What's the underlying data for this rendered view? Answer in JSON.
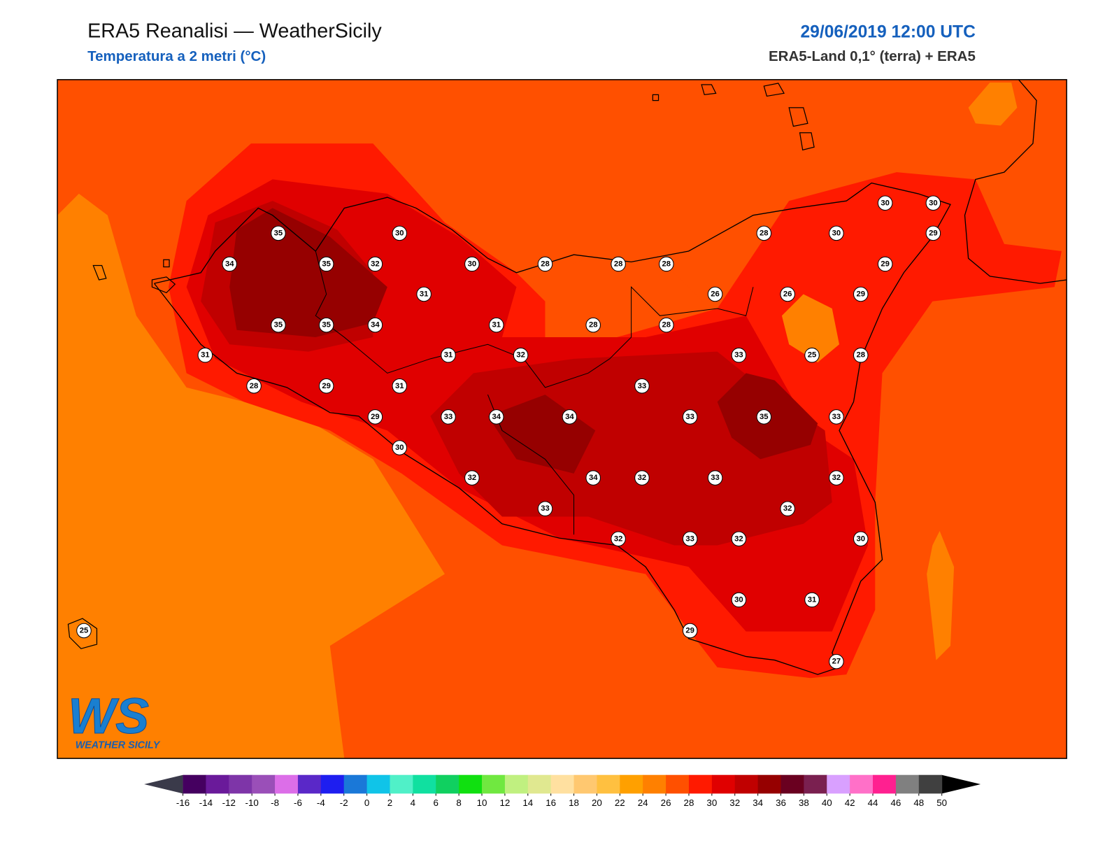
{
  "header": {
    "title": "ERA5 Reanalisi — WeatherSicily",
    "subtitle": "Temperatura a 2 metri (°C)",
    "date": "29/06/2019 12:00 UTC",
    "source": "ERA5-Land 0,1° (terra) + ERA5"
  },
  "stations": [
    35,
    30,
    34,
    35,
    32,
    30,
    28,
    28,
    28,
    28,
    30,
    30,
    30,
    29,
    29,
    31,
    26,
    26,
    29,
    35,
    35,
    34,
    31,
    28,
    28,
    31,
    31,
    32,
    33,
    25,
    28,
    28,
    29,
    31,
    33,
    29,
    33,
    34,
    34,
    33,
    35,
    33,
    30,
    32,
    34,
    32,
    33,
    32,
    33,
    32,
    32,
    33,
    32,
    30,
    30,
    31,
    29,
    25,
    27
  ],
  "logo": {
    "mark": "WS",
    "text": "WEATHER SICILY"
  },
  "colorbar": {
    "ticks": [
      -16,
      -14,
      -12,
      -10,
      -8,
      -6,
      -4,
      -2,
      0,
      2,
      4,
      6,
      8,
      10,
      12,
      14,
      16,
      18,
      20,
      22,
      24,
      26,
      28,
      30,
      32,
      34,
      36,
      38,
      40,
      42,
      44,
      46,
      48,
      50
    ],
    "colors": [
      "#450060",
      "#6a1a9a",
      "#7e35a8",
      "#9a4fb8",
      "#dc6ee8",
      "#5a28c8",
      "#1e1ef0",
      "#1a78d8",
      "#10c4e8",
      "#50f0c8",
      "#10e0a0",
      "#10d060",
      "#10e010",
      "#70e840",
      "#c0f080",
      "#e0e890",
      "#ffe0a0",
      "#ffc870",
      "#ffc040",
      "#ffa000",
      "#ff8000",
      "#ff5000",
      "#ff1a00",
      "#e00000",
      "#c00000",
      "#960000",
      "#6a0020",
      "#7a2050",
      "#d9a0ff",
      "#ff70c8",
      "#ff2090",
      "#808080",
      "#404040"
    ],
    "under": "#3a3a4a",
    "over": "#000000"
  }
}
